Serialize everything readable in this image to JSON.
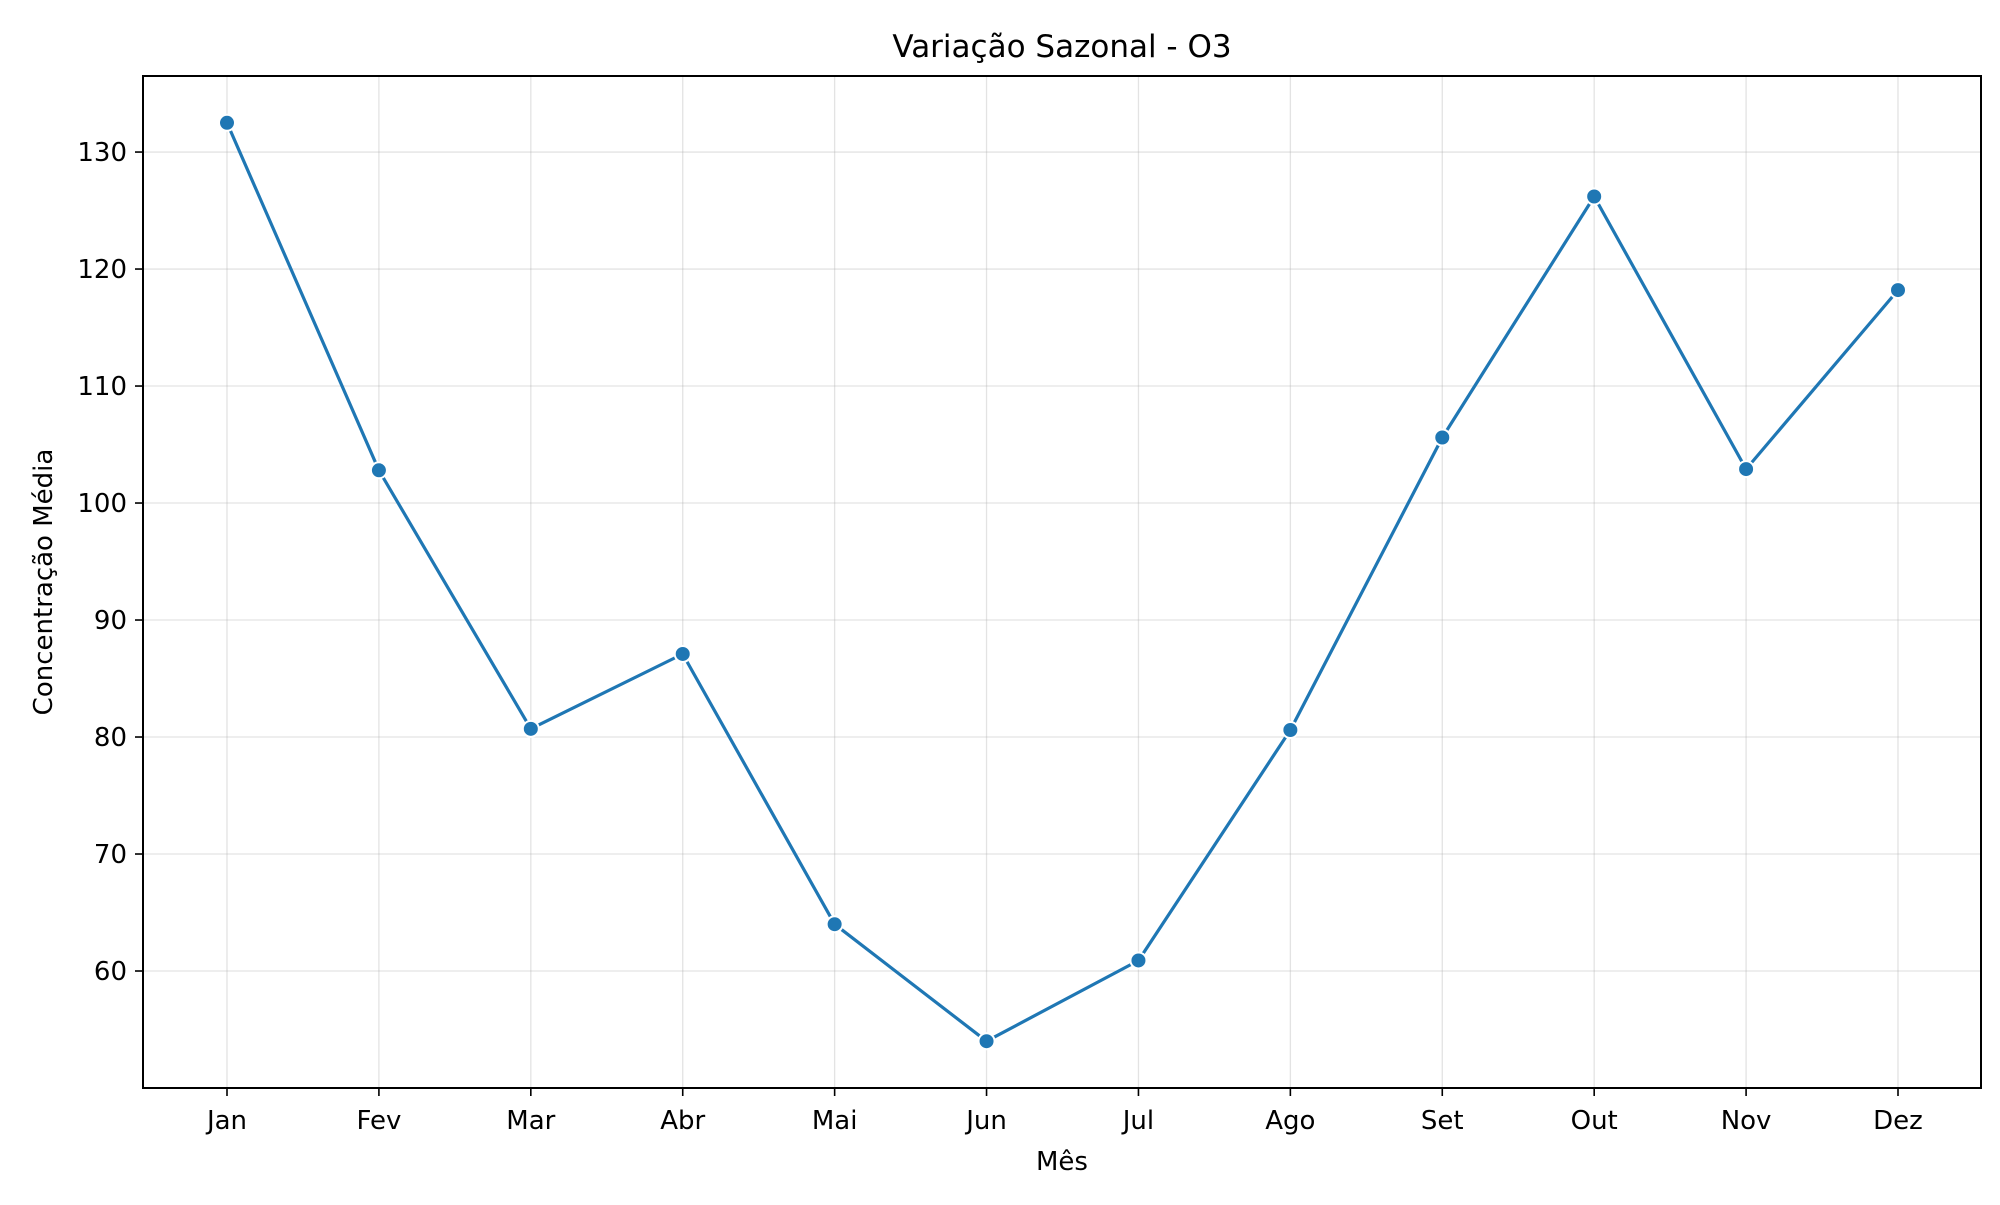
{
  "chart_data": {
    "type": "line",
    "title": "Variação Sazonal - O3",
    "xlabel": "Mês",
    "ylabel": "Concentração Média",
    "categories": [
      "Jan",
      "Fev",
      "Mar",
      "Abr",
      "Mai",
      "Jun",
      "Jul",
      "Ago",
      "Set",
      "Out",
      "Nov",
      "Dez"
    ],
    "series": [
      {
        "values": [
          132.5,
          102.8,
          80.7,
          87.1,
          64.0,
          54.0,
          60.9,
          80.6,
          105.6,
          126.2,
          102.9,
          118.2
        ],
        "color": "#1f77b4",
        "marker": "circle"
      }
    ],
    "ylim": [
      50.0,
      136.5
    ],
    "yticks": [
      60,
      70,
      80,
      90,
      100,
      110,
      120,
      130
    ],
    "grid": true,
    "legend": "none"
  }
}
